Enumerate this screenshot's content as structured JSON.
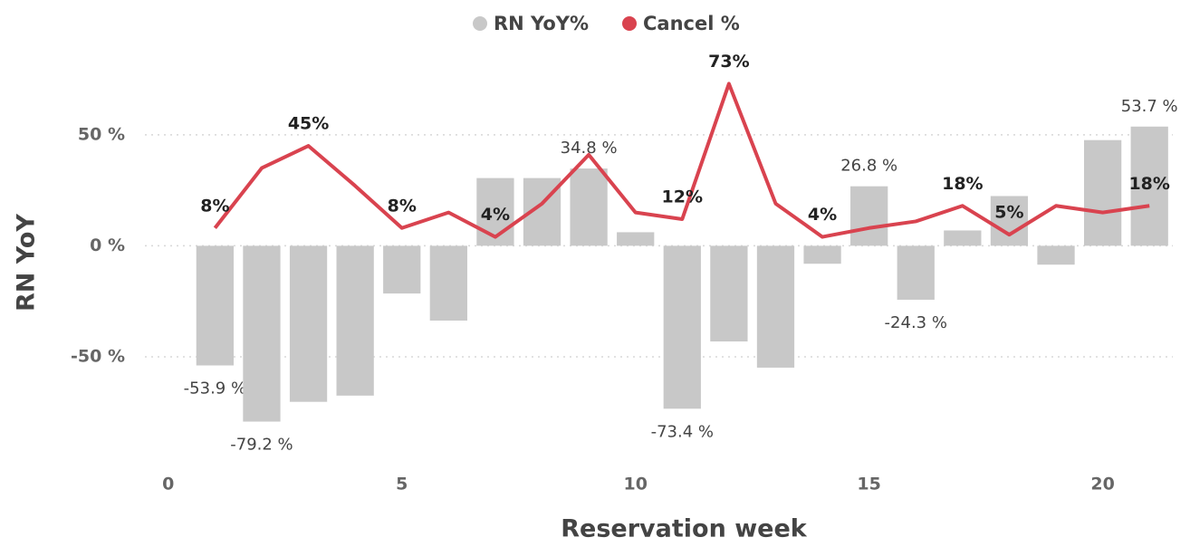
{
  "chart_data": {
    "type": "bar_line",
    "legend": true,
    "legend_position": "top",
    "xlabel": "Reservation week",
    "ylabel": "RN YoY",
    "x": [
      1,
      2,
      3,
      4,
      5,
      6,
      7,
      8,
      9,
      10,
      11,
      12,
      13,
      14,
      15,
      16,
      17,
      18,
      19,
      20,
      21
    ],
    "xlim": [
      -0.5,
      21.5
    ],
    "xticks": [
      0,
      5,
      10,
      15,
      20
    ],
    "ylim": [
      -90,
      74
    ],
    "yticks": [
      {
        "value": -50,
        "label": "-50 %"
      },
      {
        "value": 0,
        "label": "0 %"
      },
      {
        "value": 50,
        "label": "50 %"
      }
    ],
    "grid": true,
    "series": [
      {
        "name": "RN YoY%",
        "kind": "bar",
        "color": "#c8c8c8",
        "values": [
          -53.9,
          -79.2,
          -70.3,
          -67.5,
          -21.5,
          -33.7,
          30.5,
          30.5,
          34.8,
          6.1,
          -73.4,
          -43.1,
          -54.9,
          -8.1,
          26.8,
          -24.3,
          6.9,
          22.4,
          -8.5,
          47.6,
          53.7
        ],
        "value_labels": [
          "-53.9 %",
          "-79.2 %",
          null,
          null,
          null,
          null,
          null,
          null,
          "34.8 %",
          null,
          "-73.4 %",
          null,
          null,
          null,
          "26.8 %",
          "-24.3 %",
          null,
          null,
          null,
          null,
          "53.7 %"
        ]
      },
      {
        "name": "Cancel %",
        "kind": "line",
        "color": "#d9434f",
        "values": [
          8,
          35,
          45,
          27,
          8,
          15,
          4,
          19,
          41,
          15,
          12,
          73,
          19,
          4,
          8,
          11,
          18,
          5,
          18,
          15,
          18
        ],
        "value_labels": [
          "8%",
          null,
          "45%",
          null,
          "8%",
          null,
          "4%",
          null,
          null,
          null,
          "12%",
          "73%",
          null,
          "4%",
          null,
          null,
          "18%",
          "5%",
          null,
          null,
          "18%"
        ]
      }
    ]
  }
}
